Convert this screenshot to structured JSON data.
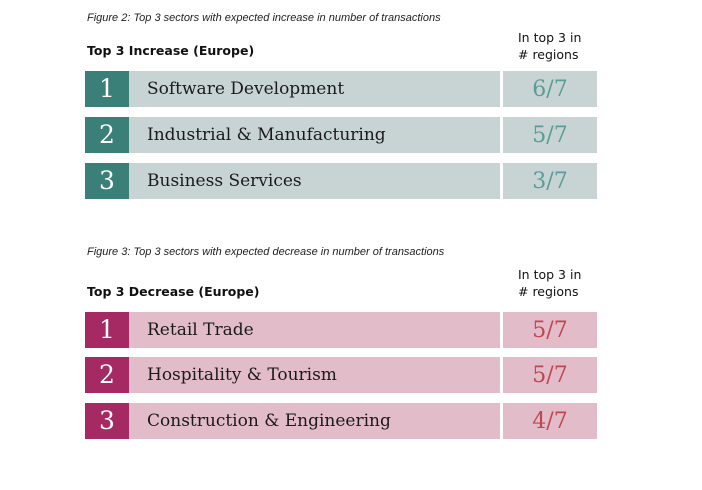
{
  "increase": {
    "caption": "Figure 2: Top 3 sectors with expected increase in number of transactions",
    "title": "Top 3 Increase (Europe)",
    "column_header": [
      "In top 3 in",
      "# regions"
    ],
    "rows": [
      {
        "rank": "1",
        "sector": "Software Development",
        "value": "6/7"
      },
      {
        "rank": "2",
        "sector": "Industrial & Manufacturing",
        "value": "5/7"
      },
      {
        "rank": "3",
        "sector": "Business Services",
        "value": "3/7"
      }
    ]
  },
  "decrease": {
    "caption": "Figure 3: Top 3 sectors with expected decrease in number of transactions",
    "title": "Top 3 Decrease (Europe)",
    "column_header": [
      "In top 3 in",
      "# regions"
    ],
    "rows": [
      {
        "rank": "1",
        "sector": "Retail Trade",
        "value": "5/7"
      },
      {
        "rank": "2",
        "sector": "Hospitality & Tourism",
        "value": "5/7"
      },
      {
        "rank": "3",
        "sector": "Construction & Engineering",
        "value": "4/7"
      }
    ]
  },
  "colors": {
    "increase_rank": "#3a8079",
    "increase_fill": "#c8d4d3",
    "increase_value": "#5a9c97",
    "decrease_rank": "#a52a63",
    "decrease_fill": "#e3bcca",
    "decrease_value": "#c0464f"
  }
}
